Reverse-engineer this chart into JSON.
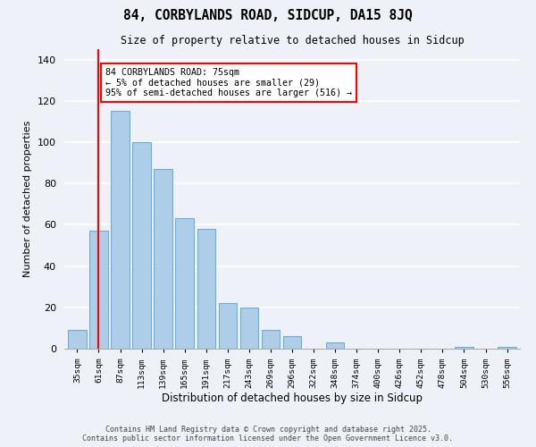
{
  "title": "84, CORBYLANDS ROAD, SIDCUP, DA15 8JQ",
  "subtitle": "Size of property relative to detached houses in Sidcup",
  "xlabel": "Distribution of detached houses by size in Sidcup",
  "ylabel": "Number of detached properties",
  "bar_labels": [
    "35sqm",
    "61sqm",
    "87sqm",
    "113sqm",
    "139sqm",
    "165sqm",
    "191sqm",
    "217sqm",
    "243sqm",
    "269sqm",
    "296sqm",
    "322sqm",
    "348sqm",
    "374sqm",
    "400sqm",
    "426sqm",
    "452sqm",
    "478sqm",
    "504sqm",
    "530sqm",
    "556sqm"
  ],
  "bar_values": [
    9,
    57,
    115,
    100,
    87,
    63,
    58,
    22,
    20,
    9,
    6,
    0,
    3,
    0,
    0,
    0,
    0,
    0,
    1,
    0,
    1
  ],
  "bar_color": "#aecde8",
  "bar_edge_color": "#6baed6",
  "vline_x": 1.0,
  "vline_color": "red",
  "annotation_text": "84 CORBYLANDS ROAD: 75sqm\n← 5% of detached houses are smaller (29)\n95% of semi-detached houses are larger (516) →",
  "annotation_box_color": "white",
  "annotation_box_edge_color": "red",
  "ylim": [
    0,
    145
  ],
  "yticks": [
    0,
    20,
    40,
    60,
    80,
    100,
    120,
    140
  ],
  "background_color": "#eef2f8",
  "grid_color": "white",
  "footer_line1": "Contains HM Land Registry data © Crown copyright and database right 2025.",
  "footer_line2": "Contains public sector information licensed under the Open Government Licence v3.0."
}
